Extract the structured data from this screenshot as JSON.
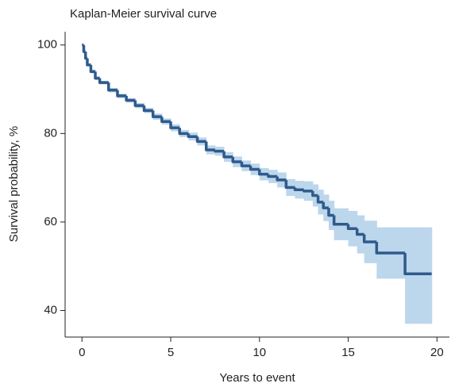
{
  "chart_data": {
    "type": "step",
    "title": "Kaplan-Meier survival curve",
    "xlabel": "Years to event",
    "ylabel": "Survival probability, %",
    "x": [
      0,
      0.1,
      0.2,
      0.3,
      0.5,
      0.75,
      1,
      1.5,
      2,
      2.5,
      3,
      3.5,
      4,
      4.5,
      5,
      5.5,
      6,
      6.5,
      7,
      7.5,
      8,
      8.5,
      9,
      9.5,
      10,
      10.5,
      11,
      11.5,
      12,
      12.5,
      13,
      13.3,
      13.6,
      13.9,
      14.2,
      15,
      15.5,
      15.9,
      16.6,
      18.2,
      19.7
    ],
    "values": [
      100,
      98.5,
      97,
      95.5,
      94,
      92.5,
      91.5,
      89.8,
      88.5,
      87.5,
      86.3,
      85.2,
      83.8,
      82.7,
      81.3,
      80,
      79.3,
      78.2,
      76.3,
      76,
      74.7,
      73.6,
      72.7,
      71.9,
      70.8,
      70.3,
      69.5,
      67.8,
      67.3,
      67,
      66,
      64.5,
      63.2,
      61.5,
      59.5,
      58.5,
      57.2,
      55.5,
      53,
      48.3,
      48.3
    ],
    "lower": [
      100,
      98.3,
      96.7,
      95.2,
      93.6,
      92.1,
      91.1,
      89.3,
      88,
      87,
      85.7,
      84.6,
      83.1,
      82,
      80.5,
      79.2,
      78.4,
      77.3,
      75.3,
      75,
      73.6,
      72.4,
      71.5,
      70.6,
      69.4,
      68.8,
      67.8,
      65.9,
      65.3,
      64.8,
      63.5,
      61.7,
      60.2,
      58.2,
      55.9,
      54.5,
      52.9,
      50.7,
      47.2,
      37,
      37
    ],
    "upper": [
      100,
      98.7,
      97.3,
      95.8,
      94.4,
      92.9,
      91.9,
      90.3,
      89,
      88,
      86.9,
      85.8,
      84.5,
      83.4,
      82.1,
      80.8,
      80.2,
      79.1,
      77.3,
      77,
      75.8,
      74.8,
      73.9,
      73.2,
      72.2,
      71.8,
      71.2,
      69.7,
      69.3,
      69.2,
      68.5,
      67.3,
      66.2,
      64.8,
      63.1,
      62.5,
      61.5,
      60.3,
      58.8,
      58.8,
      58.8
    ],
    "color": "#2f5a8c",
    "band_color": "#bcd6ec",
    "xlim": [
      -0.95,
      20.7
    ],
    "ylim": [
      34,
      103
    ],
    "xticks": [
      0,
      5,
      10,
      15,
      20
    ],
    "yticks": [
      40,
      60,
      80,
      100
    ]
  }
}
